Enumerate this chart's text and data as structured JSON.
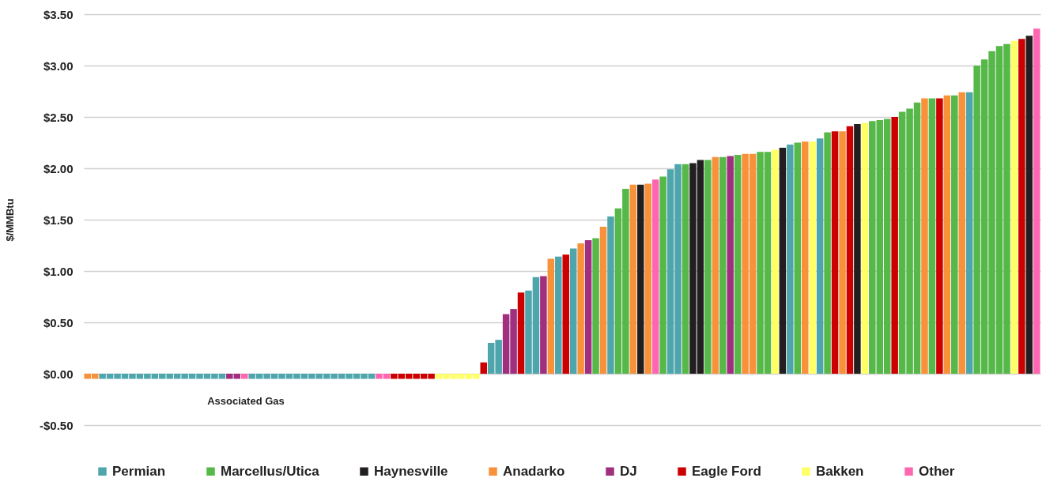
{
  "chart_data": {
    "type": "bar",
    "ylabel": "$/MMBtu",
    "ylim": [
      -0.5,
      3.5
    ],
    "yticks": [
      {
        "value": -0.5,
        "label": "-$0.50"
      },
      {
        "value": 0,
        "label": "$0.00"
      },
      {
        "value": 0.5,
        "label": "$0.50"
      },
      {
        "value": 1,
        "label": "$1.00"
      },
      {
        "value": 1.5,
        "label": "$1.50"
      },
      {
        "value": 2,
        "label": "$2.00"
      },
      {
        "value": 2.5,
        "label": "$2.50"
      },
      {
        "value": 3,
        "label": "$3.00"
      },
      {
        "value": 3.5,
        "label": "$3.50"
      }
    ],
    "grid": "y",
    "legend": "bottom",
    "tick_labels": "y",
    "annotations": [
      "Associated Gas"
    ],
    "categories": [
      null,
      null,
      null,
      null,
      null,
      null,
      null,
      null,
      null,
      null,
      null,
      null,
      null,
      null,
      null,
      null,
      null,
      null,
      null,
      null,
      null,
      null,
      null,
      null,
      null,
      null,
      null,
      null,
      null,
      null,
      null,
      null,
      null,
      null,
      null,
      null,
      null,
      null,
      null,
      null,
      null,
      null,
      null,
      null,
      null,
      null,
      null,
      null,
      null,
      null,
      null,
      null,
      null,
      null,
      null,
      null,
      null,
      null,
      null,
      null,
      null,
      null,
      null,
      null,
      null,
      null,
      null,
      null,
      null,
      null,
      null,
      null,
      null,
      null,
      null,
      null,
      null,
      null,
      null,
      null,
      null,
      null,
      null,
      null,
      null,
      null,
      null,
      null,
      null,
      null,
      null,
      null,
      null,
      null,
      null,
      null,
      null,
      null,
      null,
      null,
      null,
      null,
      null,
      null,
      null,
      null,
      null,
      null,
      null,
      null,
      null,
      null,
      null,
      null,
      null,
      null,
      null,
      null,
      null,
      null,
      null,
      null,
      null,
      null,
      null,
      null,
      null,
      null
    ],
    "series": [
      {
        "name": "Permian",
        "color": "#4ea6ac",
        "values": [
          null,
          null,
          -0.05,
          -0.05,
          -0.05,
          -0.05,
          -0.05,
          -0.05,
          -0.05,
          -0.05,
          -0.05,
          -0.05,
          -0.05,
          -0.05,
          -0.05,
          -0.05,
          -0.05,
          -0.05,
          -0.05,
          null,
          null,
          null,
          -0.05,
          -0.05,
          -0.05,
          -0.05,
          -0.05,
          -0.05,
          -0.05,
          -0.05,
          -0.05,
          -0.05,
          -0.05,
          -0.05,
          -0.05,
          -0.05,
          -0.05,
          -0.05,
          -0.05,
          null,
          null,
          null,
          null,
          null,
          null,
          null,
          null,
          null,
          null,
          null,
          null,
          null,
          null,
          null,
          0.3,
          0.33,
          null,
          null,
          null,
          0.81,
          0.94,
          null,
          null,
          1.14,
          null,
          1.22,
          null,
          null,
          null,
          null,
          1.53,
          null,
          null,
          null,
          null,
          null,
          null,
          null,
          1.99,
          2.04,
          null,
          null,
          null,
          null,
          null,
          null,
          null,
          null,
          null,
          null,
          null,
          null,
          null,
          null,
          2.23,
          null,
          null,
          null,
          2.29,
          null,
          null,
          null,
          null,
          null,
          null,
          null,
          null,
          null,
          null,
          null,
          null,
          null,
          null,
          null,
          null,
          null,
          null,
          null,
          2.74,
          null,
          null,
          null,
          null,
          null,
          null,
          null,
          null,
          null
        ]
      },
      {
        "name": "Marcellus/Utica",
        "color": "#55b848",
        "values": [
          null,
          null,
          null,
          null,
          null,
          null,
          null,
          null,
          null,
          null,
          null,
          null,
          null,
          null,
          null,
          null,
          null,
          null,
          null,
          null,
          null,
          null,
          null,
          null,
          null,
          null,
          null,
          null,
          null,
          null,
          null,
          null,
          null,
          null,
          null,
          null,
          null,
          null,
          null,
          null,
          null,
          null,
          null,
          null,
          null,
          null,
          null,
          null,
          null,
          null,
          null,
          null,
          null,
          null,
          null,
          null,
          null,
          null,
          null,
          null,
          null,
          null,
          null,
          null,
          null,
          null,
          null,
          null,
          1.32,
          null,
          null,
          1.61,
          1.8,
          null,
          null,
          null,
          null,
          1.92,
          null,
          null,
          2.04,
          null,
          null,
          2.08,
          null,
          2.11,
          null,
          2.13,
          null,
          null,
          2.16,
          2.16,
          null,
          null,
          null,
          2.25,
          null,
          null,
          null,
          2.35,
          null,
          null,
          null,
          null,
          null,
          2.46,
          2.47,
          2.48,
          null,
          2.55,
          2.58,
          2.64,
          null,
          2.68,
          null,
          null,
          2.71,
          null,
          null,
          3.0,
          3.06,
          3.14,
          3.19,
          3.21,
          null,
          null,
          null,
          null
        ]
      },
      {
        "name": "Haynesville",
        "color": "#231f20",
        "values": [
          null,
          null,
          null,
          null,
          null,
          null,
          null,
          null,
          null,
          null,
          null,
          null,
          null,
          null,
          null,
          null,
          null,
          null,
          null,
          null,
          null,
          null,
          null,
          null,
          null,
          null,
          null,
          null,
          null,
          null,
          null,
          null,
          null,
          null,
          null,
          null,
          null,
          null,
          null,
          null,
          null,
          null,
          null,
          null,
          null,
          null,
          null,
          null,
          null,
          null,
          null,
          null,
          null,
          null,
          null,
          null,
          null,
          null,
          null,
          null,
          null,
          null,
          null,
          null,
          null,
          null,
          null,
          null,
          null,
          null,
          null,
          null,
          null,
          null,
          1.84,
          null,
          null,
          null,
          null,
          null,
          null,
          2.05,
          2.08,
          null,
          null,
          null,
          null,
          null,
          null,
          null,
          null,
          null,
          null,
          2.2,
          null,
          null,
          null,
          null,
          null,
          null,
          null,
          null,
          null,
          2.43,
          null,
          null,
          null,
          null,
          null,
          null,
          null,
          null,
          null,
          null,
          null,
          null,
          null,
          null,
          null,
          null,
          null,
          null,
          null,
          null,
          null,
          null,
          3.29,
          null
        ]
      },
      {
        "name": "Anadarko",
        "color": "#f7923a",
        "values": [
          -0.05,
          -0.05,
          null,
          null,
          null,
          null,
          null,
          null,
          null,
          null,
          null,
          null,
          null,
          null,
          null,
          null,
          null,
          null,
          null,
          null,
          null,
          null,
          null,
          null,
          null,
          null,
          null,
          null,
          null,
          null,
          null,
          null,
          null,
          null,
          null,
          null,
          null,
          null,
          null,
          null,
          null,
          null,
          null,
          null,
          null,
          null,
          null,
          null,
          null,
          null,
          null,
          null,
          null,
          null,
          null,
          null,
          null,
          null,
          null,
          null,
          null,
          null,
          1.12,
          null,
          null,
          null,
          1.27,
          null,
          null,
          1.43,
          null,
          null,
          null,
          1.84,
          null,
          1.85,
          null,
          null,
          null,
          null,
          null,
          null,
          null,
          null,
          2.11,
          null,
          null,
          null,
          2.14,
          2.14,
          null,
          null,
          null,
          null,
          null,
          null,
          2.26,
          null,
          null,
          null,
          null,
          2.36,
          null,
          null,
          null,
          null,
          null,
          null,
          null,
          null,
          null,
          null,
          2.68,
          null,
          null,
          2.71,
          null,
          2.74,
          null,
          null,
          null,
          null,
          null,
          null,
          null,
          null,
          null,
          null
        ]
      },
      {
        "name": "DJ",
        "color": "#a0307f",
        "values": [
          null,
          null,
          null,
          null,
          null,
          null,
          null,
          null,
          null,
          null,
          null,
          null,
          null,
          null,
          null,
          null,
          null,
          null,
          null,
          -0.05,
          -0.05,
          null,
          null,
          null,
          null,
          null,
          null,
          null,
          null,
          null,
          null,
          null,
          null,
          null,
          null,
          null,
          null,
          null,
          null,
          null,
          null,
          null,
          null,
          null,
          null,
          null,
          null,
          null,
          null,
          null,
          null,
          null,
          null,
          null,
          null,
          null,
          0.58,
          0.63,
          null,
          null,
          null,
          0.95,
          null,
          null,
          null,
          null,
          null,
          1.3,
          null,
          null,
          null,
          null,
          null,
          null,
          null,
          null,
          null,
          null,
          null,
          null,
          null,
          null,
          null,
          null,
          null,
          null,
          2.12,
          null,
          null,
          null,
          null,
          null,
          null,
          null,
          null,
          null,
          null,
          null,
          null,
          null,
          null,
          null,
          null,
          null,
          null,
          null,
          null,
          null,
          null,
          null,
          null,
          null,
          null,
          null,
          null,
          null,
          null,
          null,
          null,
          null,
          null,
          null,
          null,
          null,
          null,
          null,
          null,
          null
        ]
      },
      {
        "name": "Eagle Ford",
        "color": "#cc0000",
        "values": [
          null,
          null,
          null,
          null,
          null,
          null,
          null,
          null,
          null,
          null,
          null,
          null,
          null,
          null,
          null,
          null,
          null,
          null,
          null,
          null,
          null,
          null,
          null,
          null,
          null,
          null,
          null,
          null,
          null,
          null,
          null,
          null,
          null,
          null,
          null,
          null,
          null,
          null,
          null,
          null,
          null,
          -0.05,
          -0.05,
          -0.05,
          -0.05,
          -0.05,
          -0.05,
          null,
          null,
          null,
          null,
          null,
          null,
          0.11,
          null,
          null,
          null,
          null,
          0.79,
          null,
          null,
          null,
          null,
          null,
          1.16,
          null,
          null,
          null,
          null,
          null,
          null,
          null,
          null,
          null,
          null,
          null,
          null,
          null,
          null,
          null,
          null,
          null,
          null,
          null,
          null,
          null,
          null,
          null,
          null,
          null,
          null,
          null,
          null,
          null,
          null,
          null,
          null,
          null,
          null,
          null,
          2.36,
          null,
          2.41,
          null,
          null,
          null,
          null,
          null,
          2.5,
          null,
          null,
          null,
          null,
          null,
          2.68,
          null,
          null,
          null,
          null,
          null,
          null,
          null,
          null,
          null,
          null,
          3.26,
          null,
          null
        ]
      },
      {
        "name": "Bakken",
        "color": "#ffff66",
        "values": [
          null,
          null,
          null,
          null,
          null,
          null,
          null,
          null,
          null,
          null,
          null,
          null,
          null,
          null,
          null,
          null,
          null,
          null,
          null,
          null,
          null,
          null,
          null,
          null,
          null,
          null,
          null,
          null,
          null,
          null,
          null,
          null,
          null,
          null,
          null,
          null,
          null,
          null,
          null,
          null,
          null,
          null,
          null,
          null,
          null,
          null,
          null,
          -0.05,
          -0.05,
          -0.05,
          -0.05,
          -0.05,
          -0.05,
          null,
          null,
          null,
          null,
          null,
          null,
          null,
          null,
          null,
          null,
          null,
          null,
          null,
          null,
          null,
          null,
          null,
          null,
          null,
          null,
          null,
          null,
          null,
          null,
          null,
          null,
          null,
          null,
          null,
          null,
          null,
          null,
          null,
          null,
          null,
          null,
          null,
          null,
          null,
          2.18,
          null,
          null,
          null,
          null,
          2.26,
          null,
          null,
          null,
          null,
          null,
          null,
          2.44,
          null,
          null,
          null,
          null,
          null,
          null,
          null,
          null,
          null,
          null,
          null,
          null,
          null,
          null,
          null,
          null,
          null,
          null,
          null,
          3.24,
          null,
          null,
          null
        ]
      },
      {
        "name": "Other",
        "color": "#ff66b2",
        "values": [
          null,
          null,
          null,
          null,
          null,
          null,
          null,
          null,
          null,
          null,
          null,
          null,
          null,
          null,
          null,
          null,
          null,
          null,
          null,
          null,
          null,
          -0.05,
          null,
          null,
          null,
          null,
          null,
          null,
          null,
          null,
          null,
          null,
          null,
          null,
          null,
          null,
          null,
          null,
          null,
          -0.05,
          -0.05,
          null,
          null,
          null,
          null,
          null,
          null,
          null,
          null,
          null,
          null,
          null,
          null,
          null,
          null,
          null,
          null,
          null,
          null,
          null,
          null,
          null,
          null,
          null,
          null,
          null,
          null,
          null,
          null,
          null,
          null,
          null,
          null,
          null,
          null,
          null,
          1.89,
          null,
          null,
          null,
          null,
          null,
          null,
          null,
          null,
          null,
          null,
          null,
          null,
          null,
          null,
          null,
          null,
          null,
          null,
          null,
          null,
          null,
          null,
          null,
          null,
          null,
          null,
          null,
          null,
          null,
          null,
          null,
          null,
          null,
          null,
          null,
          null,
          null,
          null,
          null,
          null,
          null,
          null,
          null,
          null,
          null,
          null,
          null,
          null,
          null,
          null,
          3.36
        ]
      }
    ]
  }
}
